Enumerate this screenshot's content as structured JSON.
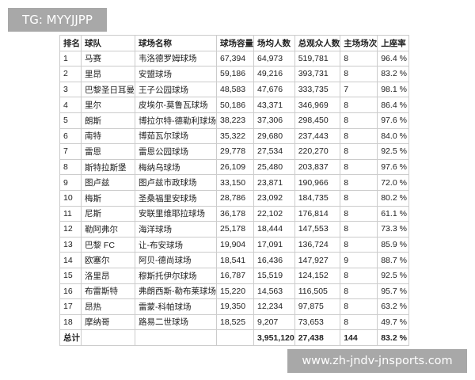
{
  "watermarks": {
    "top": "TG: MYYJJPP",
    "bottom": "www.zh-jndv-jnsports.com"
  },
  "table": {
    "headers": [
      "排名",
      "球队",
      "球场名称",
      "球场容量",
      "场均人数",
      "总观众人数",
      "主场场次",
      "上座率"
    ],
    "rows": [
      [
        "1",
        "马赛",
        "韦洛德罗姆球场",
        "67,394",
        "64,973",
        "519,781",
        "8",
        "96.4 %"
      ],
      [
        "2",
        "里昂",
        "安盟球场",
        "59,186",
        "49,216",
        "393,731",
        "8",
        "83.2 %"
      ],
      [
        "3",
        "巴黎圣日耳曼",
        "王子公园球场",
        "48,583",
        "47,676",
        "333,735",
        "7",
        "98.1 %"
      ],
      [
        "4",
        "里尔",
        "皮埃尔-莫鲁瓦球场",
        "50,186",
        "43,371",
        "346,969",
        "8",
        "86.4 %"
      ],
      [
        "5",
        "朗斯",
        "博拉尔特-德勒利球场",
        "38,223",
        "37,306",
        "298,450",
        "8",
        "97.6 %"
      ],
      [
        "6",
        "南特",
        "博茹瓦尔球场",
        "35,322",
        "29,680",
        "237,443",
        "8",
        "84.0 %"
      ],
      [
        "7",
        "雷恩",
        "雷恩公园球场",
        "29,778",
        "27,534",
        "220,270",
        "8",
        "92.5 %"
      ],
      [
        "8",
        "斯特拉斯堡",
        "梅纳乌球场",
        "26,109",
        "25,480",
        "203,837",
        "8",
        "97.6 %"
      ],
      [
        "9",
        "图卢兹",
        "图卢兹市政球场",
        "33,150",
        "23,871",
        "190,966",
        "8",
        "72.0 %"
      ],
      [
        "10",
        "梅斯",
        "圣桑福里安球场",
        "28,786",
        "23,092",
        "184,735",
        "8",
        "80.2 %"
      ],
      [
        "11",
        "尼斯",
        "安联里维耶拉球场",
        "36,178",
        "22,102",
        "176,814",
        "8",
        "61.1 %"
      ],
      [
        "12",
        "勒阿弗尔",
        "海洋球场",
        "25,178",
        "18,444",
        "147,553",
        "8",
        "73.3 %"
      ],
      [
        "13",
        "巴黎 FC",
        "让-布安球场",
        "19,904",
        "17,091",
        "136,724",
        "8",
        "85.9 %"
      ],
      [
        "14",
        "欧塞尔",
        "阿贝-德尚球场",
        "18,541",
        "16,436",
        "147,927",
        "9",
        "88.7 %"
      ],
      [
        "15",
        "洛里昂",
        "穆斯托伊尔球场",
        "16,787",
        "15,519",
        "124,152",
        "8",
        "92.5 %"
      ],
      [
        "16",
        "布雷斯特",
        "弗朗西斯-勒布莱球场",
        "15,220",
        "14,563",
        "116,505",
        "8",
        "95.7 %"
      ],
      [
        "17",
        "昂热",
        "雷蒙-科帕球场",
        "19,350",
        "12,234",
        "97,875",
        "8",
        "63.2 %"
      ],
      [
        "18",
        "摩纳哥",
        "路易二世球场",
        "18,525",
        "9,207",
        "73,653",
        "8",
        "49.7 %"
      ]
    ],
    "total": [
      "总计",
      "",
      "",
      "",
      "3,951,120",
      "27,438",
      "144",
      "83.2 %"
    ]
  }
}
